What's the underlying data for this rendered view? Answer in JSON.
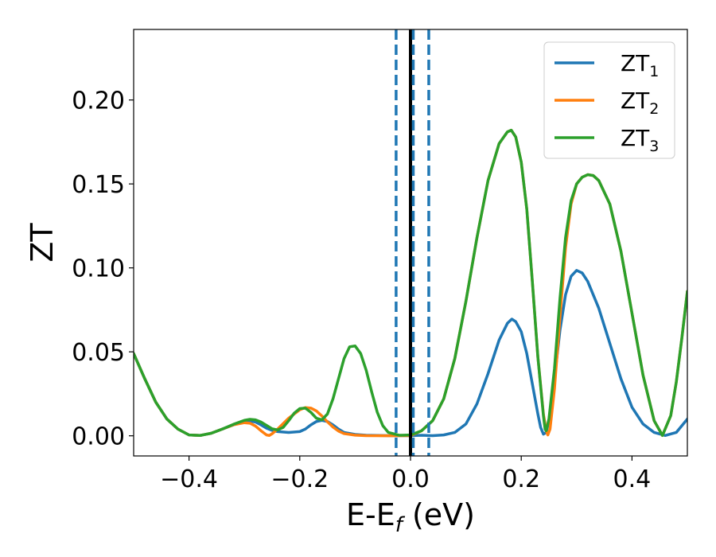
{
  "chart_data": {
    "type": "line",
    "xlabel": "E-E",
    "xlabel_sub": "f",
    "xlabel_unit": " (eV)",
    "ylabel": "ZT",
    "xlim": [
      -0.5,
      0.5
    ],
    "ylim": [
      -0.012,
      0.242
    ],
    "x_ticks": [
      -0.4,
      -0.2,
      0.0,
      0.2,
      0.4
    ],
    "x_tick_labels": [
      "−0.4",
      "−0.2",
      "0.0",
      "0.2",
      "0.4"
    ],
    "y_ticks": [
      0.0,
      0.05,
      0.1,
      0.15,
      0.2
    ],
    "y_tick_labels": [
      "0.00",
      "0.05",
      "0.10",
      "0.15",
      "0.20"
    ],
    "legend_position": "top-right",
    "grid": false,
    "vertical_lines": [
      {
        "x": 0.0,
        "style": "solid",
        "color": "#000000"
      },
      {
        "x": -0.026,
        "style": "dashed",
        "color": "#1f77b4"
      },
      {
        "x": 0.005,
        "style": "dashed",
        "color": "#1f77b4"
      },
      {
        "x": 0.033,
        "style": "dashed",
        "color": "#1f77b4"
      }
    ],
    "series": [
      {
        "name": "ZT",
        "name_sub": "1",
        "color": "#1f77b4",
        "points": [
          [
            -0.5,
            0.049
          ],
          [
            -0.48,
            0.034
          ],
          [
            -0.46,
            0.02
          ],
          [
            -0.44,
            0.01
          ],
          [
            -0.42,
            0.004
          ],
          [
            -0.4,
            0.0005
          ],
          [
            -0.38,
            0.0002
          ],
          [
            -0.36,
            0.0015
          ],
          [
            -0.34,
            0.004
          ],
          [
            -0.32,
            0.0065
          ],
          [
            -0.3,
            0.0085
          ],
          [
            -0.29,
            0.0088
          ],
          [
            -0.28,
            0.0082
          ],
          [
            -0.27,
            0.0065
          ],
          [
            -0.26,
            0.0045
          ],
          [
            -0.25,
            0.0032
          ],
          [
            -0.24,
            0.0025
          ],
          [
            -0.22,
            0.002
          ],
          [
            -0.2,
            0.0025
          ],
          [
            -0.19,
            0.004
          ],
          [
            -0.18,
            0.0065
          ],
          [
            -0.17,
            0.0085
          ],
          [
            -0.16,
            0.0092
          ],
          [
            -0.15,
            0.0085
          ],
          [
            -0.14,
            0.0065
          ],
          [
            -0.13,
            0.004
          ],
          [
            -0.12,
            0.002
          ],
          [
            -0.1,
            0.0008
          ],
          [
            -0.08,
            0.0003
          ],
          [
            -0.04,
            0.0001
          ],
          [
            0.0,
            0.0001
          ],
          [
            0.02,
            0.0003
          ],
          [
            0.04,
            0.0001
          ],
          [
            0.06,
            0.0005
          ],
          [
            0.08,
            0.002
          ],
          [
            0.1,
            0.007
          ],
          [
            0.12,
            0.019
          ],
          [
            0.14,
            0.037
          ],
          [
            0.16,
            0.057
          ],
          [
            0.175,
            0.067
          ],
          [
            0.183,
            0.0695
          ],
          [
            0.19,
            0.068
          ],
          [
            0.2,
            0.062
          ],
          [
            0.21,
            0.049
          ],
          [
            0.22,
            0.031
          ],
          [
            0.23,
            0.013
          ],
          [
            0.235,
            0.005
          ],
          [
            0.24,
            0.001
          ],
          [
            0.245,
            0.002
          ],
          [
            0.25,
            0.009
          ],
          [
            0.26,
            0.034
          ],
          [
            0.27,
            0.063
          ],
          [
            0.28,
            0.084
          ],
          [
            0.29,
            0.095
          ],
          [
            0.3,
            0.0985
          ],
          [
            0.31,
            0.097
          ],
          [
            0.32,
            0.092
          ],
          [
            0.34,
            0.076
          ],
          [
            0.36,
            0.055
          ],
          [
            0.38,
            0.034
          ],
          [
            0.4,
            0.017
          ],
          [
            0.42,
            0.007
          ],
          [
            0.44,
            0.002
          ],
          [
            0.46,
            0.0002
          ],
          [
            0.48,
            0.002
          ],
          [
            0.5,
            0.01
          ]
        ]
      },
      {
        "name": "ZT",
        "name_sub": "2",
        "color": "#ff7f0e",
        "points": [
          [
            -0.5,
            0.049
          ],
          [
            -0.48,
            0.034
          ],
          [
            -0.46,
            0.02
          ],
          [
            -0.44,
            0.01
          ],
          [
            -0.42,
            0.004
          ],
          [
            -0.4,
            0.0005
          ],
          [
            -0.38,
            0.0002
          ],
          [
            -0.36,
            0.0015
          ],
          [
            -0.34,
            0.004
          ],
          [
            -0.32,
            0.0065
          ],
          [
            -0.3,
            0.0078
          ],
          [
            -0.29,
            0.0075
          ],
          [
            -0.28,
            0.0058
          ],
          [
            -0.27,
            0.003
          ],
          [
            -0.26,
            0.0005
          ],
          [
            -0.255,
            0.0002
          ],
          [
            -0.25,
            0.0012
          ],
          [
            -0.24,
            0.004
          ],
          [
            -0.22,
            0.0105
          ],
          [
            -0.2,
            0.0155
          ],
          [
            -0.19,
            0.0168
          ],
          [
            -0.18,
            0.0165
          ],
          [
            -0.17,
            0.0148
          ],
          [
            -0.16,
            0.0118
          ],
          [
            -0.15,
            0.0083
          ],
          [
            -0.14,
            0.0052
          ],
          [
            -0.13,
            0.0028
          ],
          [
            -0.12,
            0.0013
          ],
          [
            -0.1,
            0.0004
          ],
          [
            -0.08,
            0.0001
          ],
          [
            -0.04,
            0.0
          ],
          [
            0.0,
            0.0001
          ],
          [
            0.02,
            0.003
          ],
          [
            0.04,
            0.009
          ],
          [
            0.06,
            0.022
          ],
          [
            0.08,
            0.046
          ],
          [
            0.1,
            0.08
          ],
          [
            0.12,
            0.118
          ],
          [
            0.14,
            0.152
          ],
          [
            0.16,
            0.174
          ],
          [
            0.175,
            0.181
          ],
          [
            0.182,
            0.182
          ],
          [
            0.19,
            0.178
          ],
          [
            0.2,
            0.163
          ],
          [
            0.21,
            0.135
          ],
          [
            0.22,
            0.092
          ],
          [
            0.23,
            0.047
          ],
          [
            0.24,
            0.013
          ],
          [
            0.245,
            0.003
          ],
          [
            0.248,
            0.0005
          ],
          [
            0.252,
            0.004
          ],
          [
            0.26,
            0.028
          ],
          [
            0.27,
            0.071
          ],
          [
            0.28,
            0.112
          ],
          [
            0.29,
            0.138
          ],
          [
            0.3,
            0.15
          ],
          [
            0.31,
            0.154
          ],
          [
            0.32,
            0.1555
          ],
          [
            0.33,
            0.155
          ],
          [
            0.34,
            0.152
          ],
          [
            0.36,
            0.138
          ],
          [
            0.38,
            0.11
          ],
          [
            0.4,
            0.073
          ],
          [
            0.42,
            0.036
          ],
          [
            0.44,
            0.009
          ],
          [
            0.455,
            0.0002
          ],
          [
            0.47,
            0.012
          ],
          [
            0.48,
            0.032
          ],
          [
            0.49,
            0.058
          ],
          [
            0.5,
            0.086
          ]
        ]
      },
      {
        "name": "ZT",
        "name_sub": "3",
        "color": "#2ca02c",
        "points": [
          [
            -0.5,
            0.049
          ],
          [
            -0.48,
            0.034
          ],
          [
            -0.46,
            0.02
          ],
          [
            -0.44,
            0.01
          ],
          [
            -0.42,
            0.004
          ],
          [
            -0.4,
            0.0005
          ],
          [
            -0.38,
            0.0002
          ],
          [
            -0.36,
            0.0015
          ],
          [
            -0.34,
            0.004
          ],
          [
            -0.32,
            0.0068
          ],
          [
            -0.3,
            0.0092
          ],
          [
            -0.29,
            0.0098
          ],
          [
            -0.28,
            0.0095
          ],
          [
            -0.27,
            0.0082
          ],
          [
            -0.26,
            0.0062
          ],
          [
            -0.25,
            0.0042
          ],
          [
            -0.24,
            0.0035
          ],
          [
            -0.23,
            0.005
          ],
          [
            -0.22,
            0.009
          ],
          [
            -0.21,
            0.0135
          ],
          [
            -0.2,
            0.0162
          ],
          [
            -0.19,
            0.0165
          ],
          [
            -0.18,
            0.014
          ],
          [
            -0.17,
            0.0105
          ],
          [
            -0.16,
            0.0095
          ],
          [
            -0.15,
            0.013
          ],
          [
            -0.14,
            0.022
          ],
          [
            -0.13,
            0.034
          ],
          [
            -0.12,
            0.046
          ],
          [
            -0.11,
            0.053
          ],
          [
            -0.1,
            0.0535
          ],
          [
            -0.09,
            0.049
          ],
          [
            -0.08,
            0.039
          ],
          [
            -0.07,
            0.026
          ],
          [
            -0.06,
            0.014
          ],
          [
            -0.05,
            0.006
          ],
          [
            -0.04,
            0.002
          ],
          [
            -0.02,
            0.0003
          ],
          [
            0.0,
            0.0005
          ],
          [
            0.02,
            0.003
          ],
          [
            0.04,
            0.009
          ],
          [
            0.06,
            0.022
          ],
          [
            0.08,
            0.046
          ],
          [
            0.1,
            0.08
          ],
          [
            0.12,
            0.118
          ],
          [
            0.14,
            0.152
          ],
          [
            0.16,
            0.174
          ],
          [
            0.175,
            0.181
          ],
          [
            0.182,
            0.182
          ],
          [
            0.19,
            0.178
          ],
          [
            0.2,
            0.163
          ],
          [
            0.21,
            0.135
          ],
          [
            0.22,
            0.092
          ],
          [
            0.23,
            0.047
          ],
          [
            0.24,
            0.012
          ],
          [
            0.243,
            0.004
          ],
          [
            0.245,
            0.003
          ],
          [
            0.25,
            0.01
          ],
          [
            0.26,
            0.04
          ],
          [
            0.27,
            0.082
          ],
          [
            0.28,
            0.118
          ],
          [
            0.29,
            0.14
          ],
          [
            0.3,
            0.15
          ],
          [
            0.31,
            0.154
          ],
          [
            0.32,
            0.1555
          ],
          [
            0.33,
            0.155
          ],
          [
            0.34,
            0.152
          ],
          [
            0.36,
            0.138
          ],
          [
            0.38,
            0.11
          ],
          [
            0.4,
            0.073
          ],
          [
            0.42,
            0.036
          ],
          [
            0.44,
            0.009
          ],
          [
            0.455,
            0.0002
          ],
          [
            0.47,
            0.012
          ],
          [
            0.48,
            0.032
          ],
          [
            0.49,
            0.058
          ],
          [
            0.5,
            0.086
          ]
        ]
      }
    ]
  }
}
